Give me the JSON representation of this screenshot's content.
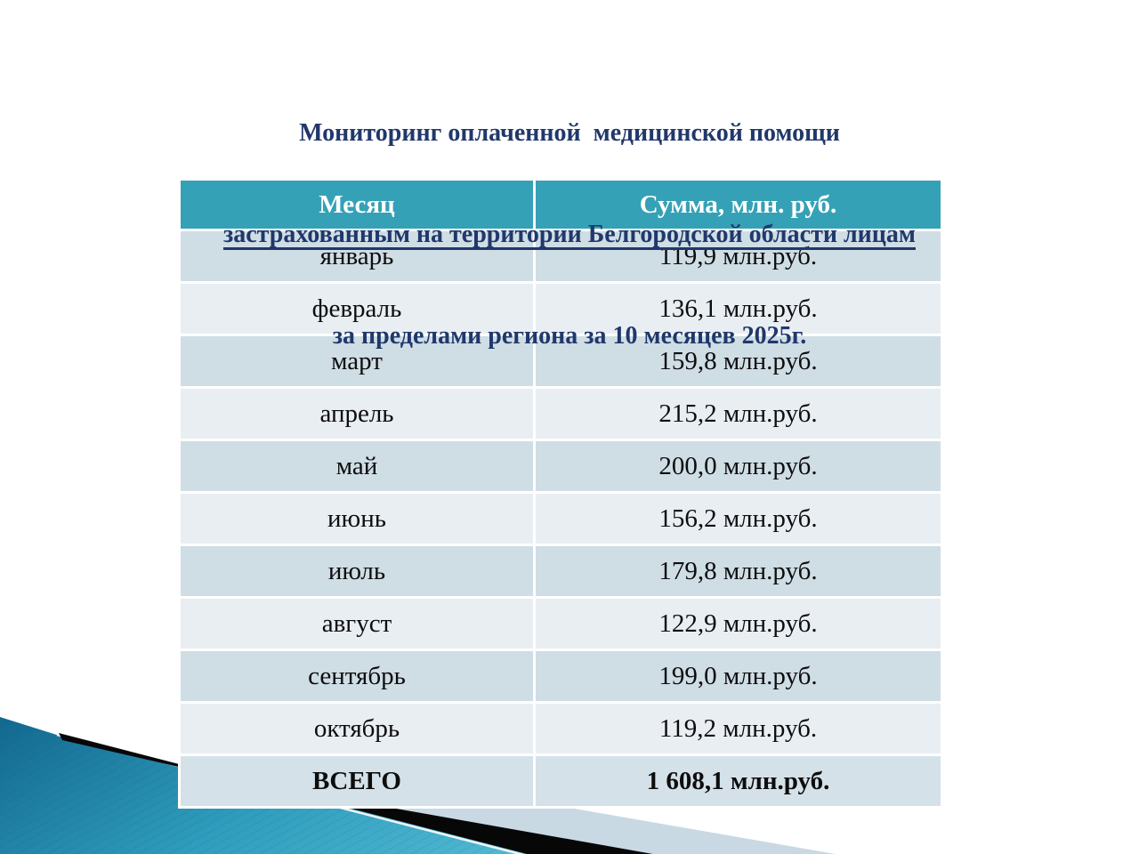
{
  "slide": {
    "title": {
      "line1": "Мониторинг оплаченной  медицинской помощи",
      "line2": "застрахованным на территории Белгородской области лицам",
      "line3": "за пределами региона за 10 месяцев 2025г."
    },
    "table": {
      "headers": [
        "Месяц",
        "Сумма, млн. руб."
      ],
      "rows": [
        {
          "month": "январь",
          "amount": "119,9 млн.руб."
        },
        {
          "month": "февраль",
          "amount": "136,1 млн.руб."
        },
        {
          "month": "март",
          "amount": "159,8 млн.руб."
        },
        {
          "month": "апрель",
          "amount": "215,2 млн.руб."
        },
        {
          "month": "май",
          "amount": "200,0 млн.руб."
        },
        {
          "month": "июнь",
          "amount": "156,2 млн.руб."
        },
        {
          "month": "июль",
          "amount": "179,8 млн.руб."
        },
        {
          "month": "август",
          "amount": "122,9 млн.руб."
        },
        {
          "month": "сентябрь",
          "amount": "199,0 млн.руб."
        },
        {
          "month": "октябрь",
          "amount": "119,2 млн.руб."
        },
        {
          "month": "ВСЕГО",
          "amount": "1 608,1 млн.руб.",
          "total": true
        }
      ]
    },
    "colors": {
      "title_navy": "#20386B",
      "header_teal": "#35A1B6",
      "row_dark": "#CFDDE5",
      "row_light": "#E9EEF3",
      "total_row": "#D5E1E9",
      "cell_text": "#0D0D0D",
      "decor_teal_dark": "#13688F",
      "decor_teal_light": "#56BDD6",
      "decor_black": "#070707",
      "decor_pale": "#C9D9E3"
    }
  }
}
